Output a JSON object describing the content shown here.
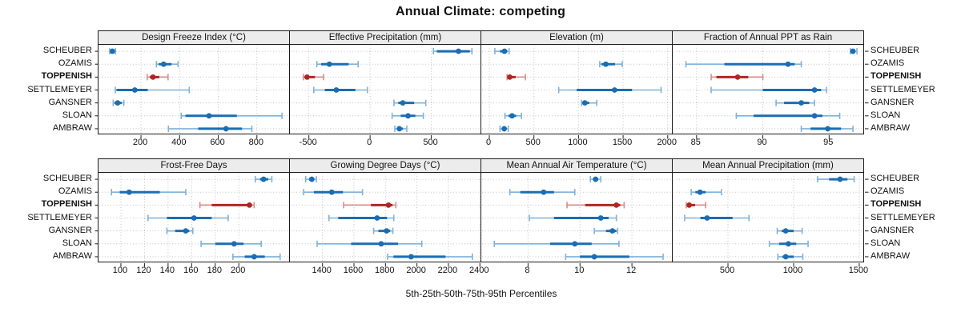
{
  "figure": {
    "title": "Annual Climate: competing",
    "xlabel": "5th-25th-50th-75th-95th Percentiles"
  },
  "colors": {
    "normal_dark": "#1b6db3",
    "normal_light": "#7fb2d9",
    "highlight_dark": "#ae2623",
    "highlight_light": "#d98b8b",
    "header_bg": "#ececec",
    "panel_border": "#1a1a1a",
    "grid": "#c3c3c3",
    "text": "#111111"
  },
  "chart_data": {
    "type": "trellis-percentile-dotplot",
    "title": "Annual Climate: competing",
    "xlabel": "5th-25th-50th-75th-95th Percentiles",
    "percentile_levels": [
      5,
      25,
      50,
      75,
      95
    ],
    "stations": [
      "SCHEUBER",
      "OZAMIS",
      "TOPPENISH",
      "SETTLEMEYER",
      "GANSNER",
      "SLOAN",
      "AMBRAW"
    ],
    "highlighted_station": "TOPPENISH",
    "grid": "dotted",
    "layout": "2 rows x 4 columns, station labels on both left and right sides",
    "panels": [
      {
        "title": "Design Freeze Index (°C)",
        "xlim": [
          -20,
          975
        ],
        "ticks": [
          200,
          400,
          600,
          800
        ],
        "values": [
          [
            38,
            46,
            52,
            58,
            68
          ],
          [
            280,
            292,
            317,
            358,
            392
          ],
          [
            232,
            246,
            262,
            295,
            340
          ],
          [
            67,
            73,
            168,
            235,
            450
          ],
          [
            56,
            63,
            79,
            100,
            111
          ],
          [
            408,
            430,
            552,
            696,
            930
          ],
          [
            342,
            496,
            640,
            723,
            774
          ]
        ]
      },
      {
        "title": "Effective Precipitation (mm)",
        "xlim": [
          -655,
          915
        ],
        "ticks": [
          -500,
          0,
          500
        ],
        "values": [
          [
            517,
            545,
            722,
            815,
            832
          ],
          [
            -435,
            -400,
            -333,
            -175,
            -98
          ],
          [
            -545,
            -530,
            -515,
            -450,
            -380
          ],
          [
            -460,
            -370,
            -276,
            -120,
            -22
          ],
          [
            195,
            230,
            267,
            360,
            455
          ],
          [
            180,
            250,
            310,
            370,
            435
          ],
          [
            202,
            220,
            239,
            268,
            300
          ]
        ]
      },
      {
        "title": "Elevation (m)",
        "xlim": [
          -90,
          2065
        ],
        "ticks": [
          0,
          500,
          1000,
          1500,
          2000
        ],
        "values": [
          [
            62,
            120,
            170,
            200,
            222
          ],
          [
            1238,
            1258,
            1306,
            1410,
            1490
          ],
          [
            199,
            206,
            229,
            295,
            404
          ],
          [
            778,
            980,
            1404,
            1600,
            1926
          ],
          [
            1035,
            1052,
            1071,
            1120,
            1205
          ],
          [
            175,
            215,
            255,
            300,
            360
          ],
          [
            120,
            145,
            167,
            190,
            212
          ]
        ]
      },
      {
        "title": "Fraction of Annual PPT as Rain",
        "xlim": [
          83.2,
          97.7
        ],
        "ticks": [
          85,
          90,
          95
        ],
        "values": [
          [
            96.6,
            96.7,
            96.8,
            96.9,
            97.1
          ],
          [
            84.2,
            87.1,
            91.9,
            92.4,
            92.9
          ],
          [
            86.1,
            86.5,
            88.1,
            88.9,
            90.0
          ],
          [
            86.1,
            90.0,
            93.9,
            94.4,
            94.8
          ],
          [
            91.0,
            91.6,
            92.9,
            93.5,
            93.9
          ],
          [
            88.0,
            89.3,
            93.9,
            94.5,
            95.8
          ],
          [
            92.9,
            93.6,
            94.9,
            95.9,
            96.8
          ]
        ]
      },
      {
        "title": "Frost-Free Days",
        "xlim": [
          81,
          244
        ],
        "ticks": [
          100,
          120,
          140,
          160,
          180,
          200
        ],
        "values": [
          [
            214,
            218,
            221,
            225,
            228
          ],
          [
            92,
            99,
            107,
            133,
            155
          ],
          [
            167,
            177,
            209,
            211,
            213
          ],
          [
            123,
            139,
            162,
            177,
            191
          ],
          [
            139,
            146,
            155,
            158,
            161
          ],
          [
            168,
            180,
            196,
            204,
            219
          ],
          [
            195,
            205,
            213,
            222,
            235
          ]
        ]
      },
      {
        "title": "Growing Degree Days (°C)",
        "xlim": [
          1193,
          2414
        ],
        "ticks": [
          1400,
          1600,
          1800,
          2000,
          2200,
          2400
        ],
        "values": [
          [
            1293,
            1315,
            1332,
            1348,
            1361
          ],
          [
            1280,
            1345,
            1459,
            1530,
            1654
          ],
          [
            1534,
            1708,
            1819,
            1845,
            1866
          ],
          [
            1441,
            1500,
            1747,
            1810,
            1853
          ],
          [
            1725,
            1755,
            1807,
            1830,
            1847
          ],
          [
            1366,
            1582,
            1773,
            1880,
            2031
          ],
          [
            1814,
            1851,
            1963,
            2182,
            2352
          ]
        ]
      },
      {
        "title": "Mean Annual Air Temperature (°C)",
        "xlim": [
          6.2,
          13.6
        ],
        "ticks": [
          8,
          10,
          12
        ],
        "values": [
          [
            10.4,
            10.5,
            10.6,
            10.7,
            10.8
          ],
          [
            7.3,
            7.7,
            8.6,
            9.0,
            9.8
          ],
          [
            9.5,
            10.2,
            11.4,
            11.55,
            11.7
          ],
          [
            8.05,
            9.0,
            10.8,
            11.1,
            11.4
          ],
          [
            10.55,
            11.0,
            11.25,
            11.4,
            11.45
          ],
          [
            6.7,
            8.85,
            9.8,
            10.45,
            11.5
          ],
          [
            9.45,
            10.0,
            10.55,
            11.9,
            13.2
          ]
        ]
      },
      {
        "title": "Mean Annual Precipitation (mm)",
        "xlim": [
          79,
          1543
        ],
        "ticks": [
          500,
          1000,
          1500
        ],
        "values": [
          [
            1183,
            1270,
            1354,
            1410,
            1461
          ],
          [
            220,
            252,
            287,
            330,
            450
          ],
          [
            182,
            192,
            205,
            250,
            330
          ],
          [
            170,
            290,
            341,
            535,
            660
          ],
          [
            875,
            910,
            940,
            1000,
            1065
          ],
          [
            815,
            890,
            960,
            1020,
            1110
          ],
          [
            880,
            915,
            940,
            1000,
            1070
          ]
        ]
      }
    ]
  }
}
